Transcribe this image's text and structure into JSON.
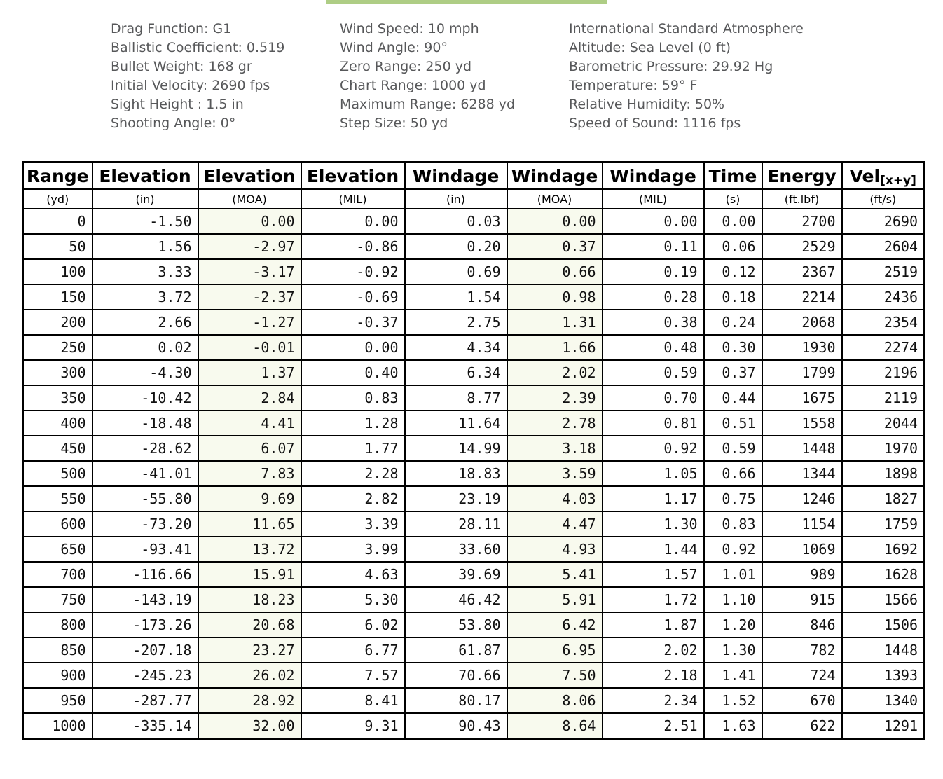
{
  "accent_bar_color": "#aecd85",
  "colors": {
    "moa_tint": "#f8faee",
    "header_text": "#57585a",
    "border": "#000000"
  },
  "parameters": {
    "ballistics": [
      "Drag Function: G1",
      "Ballistic Coefficient: 0.519",
      "Bullet Weight: 168 gr",
      "Initial Velocity: 2690 fps",
      "Sight Height : 1.5 in",
      "Shooting Angle: 0°"
    ],
    "wind": [
      "Wind Speed: 10 mph",
      "Wind Angle: 90°",
      "Zero Range: 250 yd",
      "Chart Range: 1000 yd",
      "Maximum Range: 6288 yd",
      "Step Size: 50 yd"
    ],
    "atmosphere_title": "International Standard Atmosphere",
    "atmosphere": [
      "Altitude: Sea Level (0 ft)",
      "Barometric Pressure: 29.92 Hg",
      "Temperature: 59° F",
      "Relative Humidity: 50%",
      "Speed of Sound: 1116 fps"
    ]
  },
  "table": {
    "columns": [
      {
        "key": "range",
        "label": "Range",
        "unit": "(yd)"
      },
      {
        "key": "elevation-in",
        "label": "Elevation",
        "unit": "(in)"
      },
      {
        "key": "elevation-moa",
        "label": "Elevation",
        "unit": "(MOA)"
      },
      {
        "key": "elevation-mil",
        "label": "Elevation",
        "unit": "(MIL)"
      },
      {
        "key": "windage-in",
        "label": "Windage",
        "unit": "(in)"
      },
      {
        "key": "windage-moa",
        "label": "Windage",
        "unit": "(MOA)"
      },
      {
        "key": "windage-mil",
        "label": "Windage",
        "unit": "(MIL)"
      },
      {
        "key": "time",
        "label": "Time",
        "unit": "(s)"
      },
      {
        "key": "energy",
        "label": "Energy",
        "unit": "(ft.lbf)"
      },
      {
        "key": "velocity",
        "label": "Vel",
        "sub": "[x+y]",
        "unit": "(ft/s)"
      }
    ],
    "rows": [
      [
        "0",
        "-1.50",
        "0.00",
        "0.00",
        "0.03",
        "0.00",
        "0.00",
        "0.00",
        "2700",
        "2690"
      ],
      [
        "50",
        "1.56",
        "-2.97",
        "-0.86",
        "0.20",
        "0.37",
        "0.11",
        "0.06",
        "2529",
        "2604"
      ],
      [
        "100",
        "3.33",
        "-3.17",
        "-0.92",
        "0.69",
        "0.66",
        "0.19",
        "0.12",
        "2367",
        "2519"
      ],
      [
        "150",
        "3.72",
        "-2.37",
        "-0.69",
        "1.54",
        "0.98",
        "0.28",
        "0.18",
        "2214",
        "2436"
      ],
      [
        "200",
        "2.66",
        "-1.27",
        "-0.37",
        "2.75",
        "1.31",
        "0.38",
        "0.24",
        "2068",
        "2354"
      ],
      [
        "250",
        "0.02",
        "-0.01",
        "0.00",
        "4.34",
        "1.66",
        "0.48",
        "0.30",
        "1930",
        "2274"
      ],
      [
        "300",
        "-4.30",
        "1.37",
        "0.40",
        "6.34",
        "2.02",
        "0.59",
        "0.37",
        "1799",
        "2196"
      ],
      [
        "350",
        "-10.42",
        "2.84",
        "0.83",
        "8.77",
        "2.39",
        "0.70",
        "0.44",
        "1675",
        "2119"
      ],
      [
        "400",
        "-18.48",
        "4.41",
        "1.28",
        "11.64",
        "2.78",
        "0.81",
        "0.51",
        "1558",
        "2044"
      ],
      [
        "450",
        "-28.62",
        "6.07",
        "1.77",
        "14.99",
        "3.18",
        "0.92",
        "0.59",
        "1448",
        "1970"
      ],
      [
        "500",
        "-41.01",
        "7.83",
        "2.28",
        "18.83",
        "3.59",
        "1.05",
        "0.66",
        "1344",
        "1898"
      ],
      [
        "550",
        "-55.80",
        "9.69",
        "2.82",
        "23.19",
        "4.03",
        "1.17",
        "0.75",
        "1246",
        "1827"
      ],
      [
        "600",
        "-73.20",
        "11.65",
        "3.39",
        "28.11",
        "4.47",
        "1.30",
        "0.83",
        "1154",
        "1759"
      ],
      [
        "650",
        "-93.41",
        "13.72",
        "3.99",
        "33.60",
        "4.93",
        "1.44",
        "0.92",
        "1069",
        "1692"
      ],
      [
        "700",
        "-116.66",
        "15.91",
        "4.63",
        "39.69",
        "5.41",
        "1.57",
        "1.01",
        "989",
        "1628"
      ],
      [
        "750",
        "-143.19",
        "18.23",
        "5.30",
        "46.42",
        "5.91",
        "1.72",
        "1.10",
        "915",
        "1566"
      ],
      [
        "800",
        "-173.26",
        "20.68",
        "6.02",
        "53.80",
        "6.42",
        "1.87",
        "1.20",
        "846",
        "1506"
      ],
      [
        "850",
        "-207.18",
        "23.27",
        "6.77",
        "61.87",
        "6.95",
        "2.02",
        "1.30",
        "782",
        "1448"
      ],
      [
        "900",
        "-245.23",
        "26.02",
        "7.57",
        "70.66",
        "7.50",
        "2.18",
        "1.41",
        "724",
        "1393"
      ],
      [
        "950",
        "-287.77",
        "28.92",
        "8.41",
        "80.17",
        "8.06",
        "2.34",
        "1.52",
        "670",
        "1340"
      ],
      [
        "1000",
        "-335.14",
        "32.00",
        "9.31",
        "90.43",
        "8.64",
        "2.51",
        "1.63",
        "622",
        "1291"
      ]
    ]
  }
}
